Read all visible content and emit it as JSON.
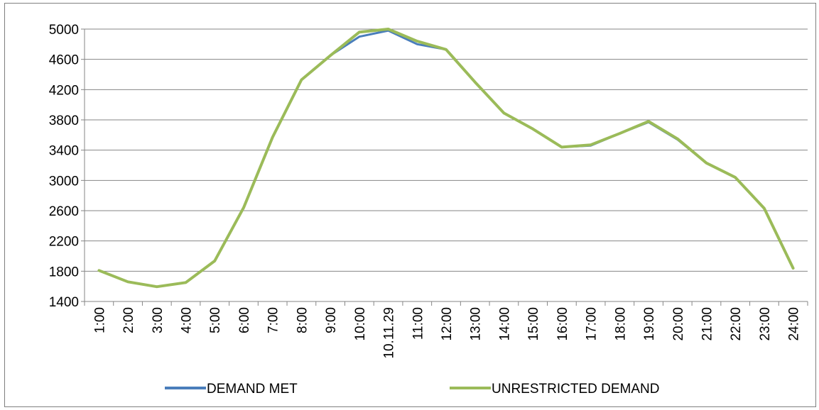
{
  "chart_data": {
    "type": "line",
    "title": "",
    "xlabel": "",
    "ylabel": "",
    "ylim": [
      1400,
      5000
    ],
    "yticks": [
      1400,
      1800,
      2200,
      2600,
      3000,
      3400,
      3800,
      4200,
      4600,
      5000
    ],
    "grid": "horizontal",
    "legend_position": "bottom",
    "categories": [
      "1:00",
      "2:00",
      "3:00",
      "4:00",
      "5:00",
      "6:00",
      "7:00",
      "8:00",
      "9:00",
      "10:00",
      "10.11.29",
      "11:00",
      "12:00",
      "13:00",
      "14:00",
      "15:00",
      "16:00",
      "17:00",
      "18:00",
      "19:00",
      "20:00",
      "21:00",
      "22:00",
      "23:00",
      "24:00"
    ],
    "series": [
      {
        "name": "DEMAND MET",
        "color": "#4a7ebb",
        "values": [
          1810,
          1660,
          1595,
          1650,
          1935,
          2640,
          3570,
          4330,
          4650,
          4900,
          4980,
          4800,
          4730,
          4300,
          3890,
          3680,
          3440,
          3460,
          3620,
          3770,
          3540,
          3230,
          3040,
          2630,
          1840
        ]
      },
      {
        "name": "UNRESTRICTED DEMAND",
        "color": "#9bbb59",
        "values": [
          1810,
          1660,
          1595,
          1650,
          1935,
          2640,
          3570,
          4330,
          4650,
          4960,
          5000,
          4840,
          4730,
          4300,
          3890,
          3680,
          3440,
          3470,
          3620,
          3780,
          3550,
          3230,
          3040,
          2630,
          1840
        ]
      }
    ]
  }
}
